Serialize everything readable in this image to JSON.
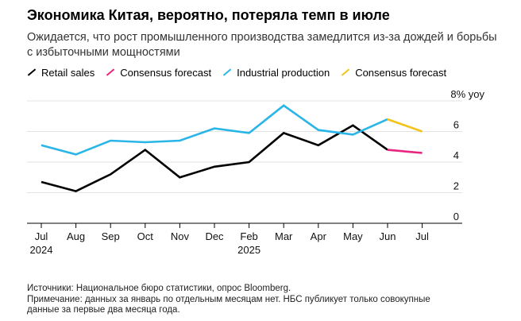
{
  "header": {
    "title": "Экономика Китая, вероятно, потеряла темп в июле",
    "subtitle": "Ожидается, что рост промышленного производства замедлится из-за дождей и борьбы с избыточными мощностями"
  },
  "legend": [
    {
      "label": "Retail sales",
      "color": "#000000"
    },
    {
      "label": "Consensus forecast",
      "color": "#e8247f"
    },
    {
      "label": "Industrial production",
      "color": "#29b5e8"
    },
    {
      "label": "Consensus forecast",
      "color": "#f2c318"
    }
  ],
  "footer": {
    "source": "Источники: Национальное бюро статистики, опрос Bloomberg.",
    "note_line1": "Примечание: данных за январь по отдельным месяцам нет. НБС публикует только совокупные",
    "note_line2": "данные за первые два месяца года."
  },
  "chart_data": {
    "type": "line",
    "unit_label": "8% yoy",
    "ylim": [
      0,
      8
    ],
    "yticks": [
      "0",
      "2",
      "4",
      "6"
    ],
    "grid": true,
    "x_dates": [
      "2024-07",
      "2024-08",
      "2024-09",
      "2024-10",
      "2024-11",
      "2024-12",
      "2025-02",
      "2025-03",
      "2025-04",
      "2025-05",
      "2025-06",
      "2025-07"
    ],
    "x_tick_labels": [
      "Jul",
      "Aug",
      "Sep",
      "Oct",
      "Nov",
      "Dec",
      "Feb",
      "Mar",
      "Apr",
      "May",
      "Jun",
      "Jul"
    ],
    "x_year_labels": [
      {
        "at": "2024-07",
        "label": "2024"
      },
      {
        "at": "2025-02",
        "label": "2025"
      }
    ],
    "series": [
      {
        "name": "Retail sales",
        "color": "#000000",
        "points": [
          [
            "2024-07",
            2.7
          ],
          [
            "2024-08",
            2.1
          ],
          [
            "2024-09",
            3.2
          ],
          [
            "2024-10",
            4.8
          ],
          [
            "2024-11",
            3.0
          ],
          [
            "2024-12",
            3.7
          ],
          [
            "2025-02",
            4.0
          ],
          [
            "2025-03",
            5.9
          ],
          [
            "2025-04",
            5.1
          ],
          [
            "2025-05",
            6.4
          ],
          [
            "2025-06",
            4.8
          ]
        ]
      },
      {
        "name": "Consensus forecast",
        "color": "#e8247f",
        "points": [
          [
            "2025-06",
            4.8
          ],
          [
            "2025-07",
            4.6
          ]
        ]
      },
      {
        "name": "Industrial production",
        "color": "#29b5e8",
        "points": [
          [
            "2024-07",
            5.1
          ],
          [
            "2024-08",
            4.5
          ],
          [
            "2024-09",
            5.4
          ],
          [
            "2024-10",
            5.3
          ],
          [
            "2024-11",
            5.4
          ],
          [
            "2024-12",
            6.2
          ],
          [
            "2025-02",
            5.9
          ],
          [
            "2025-03",
            7.7
          ],
          [
            "2025-04",
            6.1
          ],
          [
            "2025-05",
            5.8
          ],
          [
            "2025-06",
            6.8
          ]
        ]
      },
      {
        "name": "Consensus forecast",
        "color": "#f2c318",
        "points": [
          [
            "2025-06",
            6.8
          ],
          [
            "2025-07",
            6.0
          ]
        ]
      }
    ]
  }
}
